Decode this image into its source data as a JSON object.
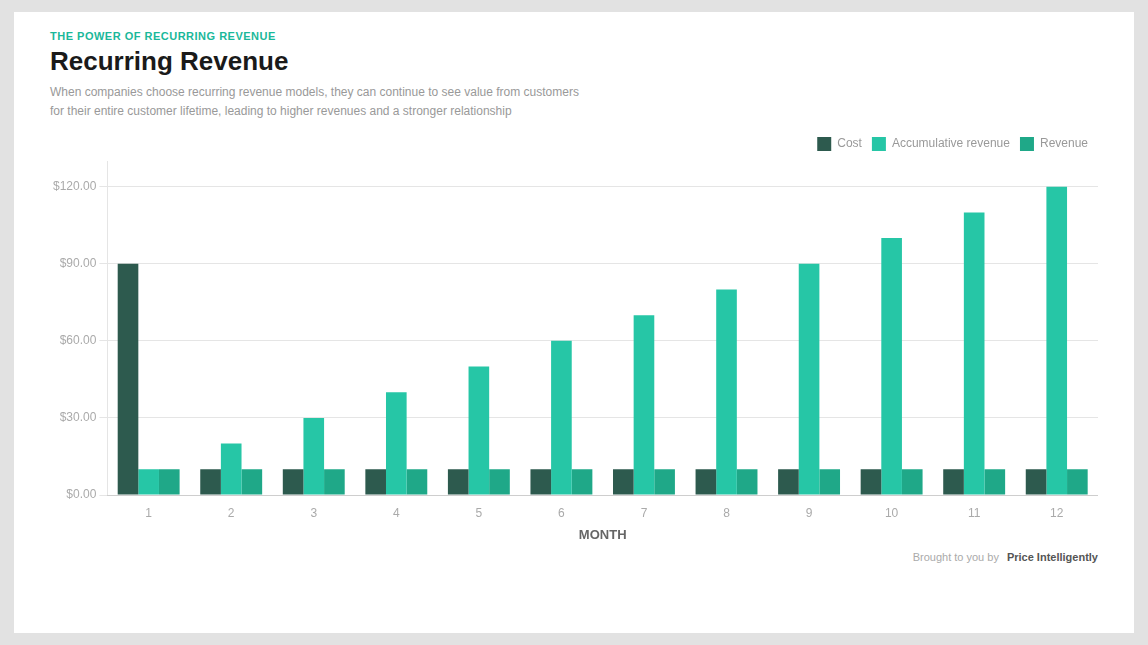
{
  "chart_data": {
    "type": "bar",
    "title": "Recurring Revenue",
    "subtitle": "When companies choose recurring revenue models, they can continue to see value from customers\nfor their entire customer lifetime, leading to higher revenues and a stronger relationship",
    "annotations": [
      "THE POWER OF RECURRING REVENUE",
      "Brought to you by",
      "Price Intelligently"
    ],
    "x_label": "MONTH",
    "categories": [
      "1",
      "2",
      "3",
      "4",
      "5",
      "6",
      "7",
      "8",
      "9",
      "10",
      "11",
      "12"
    ],
    "series": [
      {
        "name": "Cost",
        "color": "#2d5a4e",
        "values": [
          90,
          10,
          10,
          10,
          10,
          10,
          10,
          10,
          10,
          10,
          10,
          10
        ]
      },
      {
        "name": "Accumulative revenue",
        "color": "#26c6a6",
        "values": [
          10,
          20,
          30,
          40,
          50,
          60,
          70,
          80,
          90,
          100,
          110,
          120
        ]
      },
      {
        "name": "Revenue",
        "color": "#1fa888",
        "values": [
          10,
          10,
          10,
          10,
          10,
          10,
          10,
          10,
          10,
          10,
          10,
          10
        ]
      }
    ],
    "ylim": [
      0,
      130
    ],
    "yticks": [
      {
        "value": 0,
        "label": "$0.00"
      },
      {
        "value": 30,
        "label": "$30.00"
      },
      {
        "value": 60,
        "label": "$60.00"
      },
      {
        "value": 90,
        "label": "$90.00"
      },
      {
        "value": 120,
        "label": "$120.00"
      }
    ],
    "grid": true,
    "legend": "upper right"
  }
}
